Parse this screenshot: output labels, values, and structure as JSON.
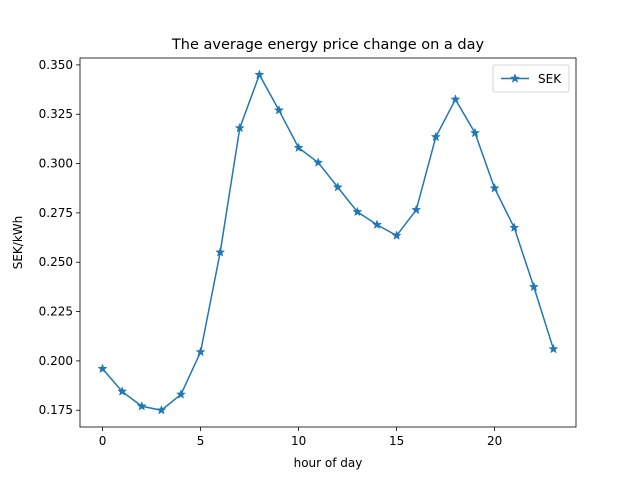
{
  "chart_data": {
    "type": "line",
    "title": "The average energy price change on a day",
    "xlabel": "hour of day",
    "ylabel": "SEK/kWh",
    "xlim": [
      -1.15,
      24.15
    ],
    "ylim": [
      0.1665,
      0.3535
    ],
    "xticks": [
      0,
      5,
      10,
      15,
      20
    ],
    "xtick_labels": [
      "0",
      "5",
      "10",
      "15",
      "20"
    ],
    "yticks": [
      0.175,
      0.2,
      0.225,
      0.25,
      0.275,
      0.3,
      0.325,
      0.35
    ],
    "ytick_labels": [
      "0.175",
      "0.200",
      "0.225",
      "0.250",
      "0.275",
      "0.300",
      "0.325",
      "0.350"
    ],
    "grid": false,
    "legend_position": "top-right",
    "x": [
      0,
      1,
      2,
      3,
      4,
      5,
      6,
      7,
      8,
      9,
      10,
      11,
      12,
      13,
      14,
      15,
      16,
      17,
      18,
      19,
      20,
      21,
      22,
      23
    ],
    "series": [
      {
        "name": "SEK",
        "marker": "star",
        "color": "#1f77b4",
        "values": [
          0.196,
          0.1845,
          0.177,
          0.175,
          0.183,
          0.2045,
          0.255,
          0.318,
          0.345,
          0.327,
          0.308,
          0.3005,
          0.288,
          0.2755,
          0.269,
          0.2635,
          0.2765,
          0.3135,
          0.3325,
          0.3155,
          0.2875,
          0.2675,
          0.2375,
          0.206
        ]
      }
    ]
  }
}
